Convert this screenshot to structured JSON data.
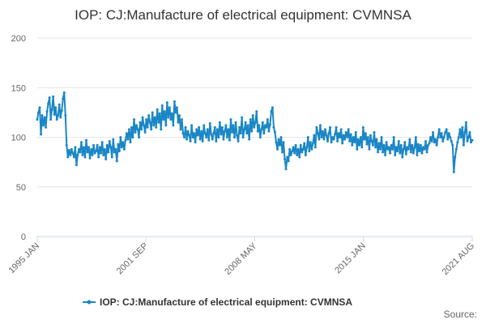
{
  "colors": {
    "series": "#1a86c6",
    "grid": "#e6e6e6",
    "axis": "#ccd6eb"
  },
  "chart_data": {
    "type": "line",
    "title": "IOP: CJ:Manufacture of electrical equipment: CVMNSA",
    "xlabel": "",
    "ylabel": "",
    "ylim": [
      0,
      200
    ],
    "yticks": [
      0,
      50,
      100,
      150,
      200
    ],
    "xticks": [
      "1995 JAN",
      "2001 SEP",
      "2008 MAY",
      "2015 JAN",
      "2021 AUG"
    ],
    "grid": true,
    "legend": "bottom-center",
    "source": "Source:",
    "series": [
      {
        "name": "IOP: CJ:Manufacture of electrical equipment: CVMNSA",
        "start": "1995 JAN",
        "frequency": "monthly",
        "values": [
          118,
          125,
          130,
          103,
          122,
          112,
          120,
          110,
          126,
          134,
          140,
          118,
          128,
          141,
          123,
          130,
          118,
          122,
          133,
          120,
          127,
          139,
          145,
          122,
          92,
          80,
          87,
          82,
          88,
          84,
          80,
          90,
          72,
          82,
          88,
          85,
          95,
          82,
          90,
          80,
          97,
          85,
          90,
          79,
          88,
          82,
          92,
          84,
          86,
          92,
          80,
          90,
          84,
          95,
          82,
          88,
          78,
          92,
          85,
          96,
          90,
          80,
          98,
          85,
          88,
          76,
          93,
          86,
          100,
          90,
          95,
          88,
          97,
          104,
          98,
          108,
          95,
          110,
          100,
          118,
          105,
          112,
          108,
          100,
          115,
          108,
          120,
          112,
          105,
          118,
          110,
          122,
          115,
          108,
          125,
          112,
          120,
          110,
          128,
          115,
          124,
          108,
          132,
          118,
          126,
          112,
          135,
          120,
          130,
          118,
          124,
          112,
          136,
          125,
          130,
          115,
          122,
          108,
          118,
          104,
          100,
          110,
          98,
          106,
          102,
          96,
          112,
          100,
          104,
          95,
          108,
          102,
          110,
          98,
          106,
          96,
          112,
          104,
          100,
          108,
          97,
          114,
          103,
          98,
          104,
          110,
          96,
          108,
          100,
          115,
          103,
          110,
          98,
          106,
          112,
          100,
          108,
          97,
          118,
          105,
          112,
          100,
          115,
          102,
          96,
          110,
          104,
          120,
          100,
          108,
          115,
          104,
          112,
          98,
          118,
          106,
          122,
          110,
          115,
          126,
          106,
          112,
          100,
          108,
          115,
          104,
          112,
          110,
          118,
          106,
          113,
          126,
          130,
          110,
          105,
          95,
          88,
          98,
          92,
          100,
          85,
          95,
          78,
          68,
          80,
          76,
          88,
          82,
          86,
          90,
          84,
          92,
          82,
          88,
          80,
          92,
          85,
          88,
          94,
          82,
          90,
          100,
          86,
          95,
          88,
          94,
          102,
          90,
          110,
          104,
          98,
          112,
          100,
          106,
          98,
          108,
          102,
          96,
          104,
          110,
          95,
          100,
          98,
          103,
          110,
          96,
          104,
          100,
          108,
          94,
          102,
          98,
          105,
          100,
          108,
          96,
          103,
          92,
          100,
          95,
          105,
          88,
          98,
          92,
          100,
          90,
          110,
          98,
          104,
          93,
          100,
          88,
          102,
          96,
          92,
          105,
          90,
          98,
          85,
          94,
          88,
          100,
          85,
          92,
          82,
          95,
          88,
          90,
          84,
          92,
          88,
          100,
          82,
          90,
          86,
          96,
          84,
          92,
          80,
          88,
          95,
          83,
          90,
          88,
          98,
          85,
          92,
          84,
          90,
          100,
          82,
          93,
          86,
          92,
          84,
          90,
          88,
          96,
          85,
          92,
          94,
          100,
          96,
          105,
          95,
          98,
          92,
          100,
          108,
          100,
          104,
          96,
          100,
          105,
          108,
          98,
          104,
          100,
          96,
          92,
          65,
          80,
          88,
          95,
          100,
          108,
          100,
          110,
          92,
          105,
          115,
          96,
          100,
          105,
          95,
          97
        ]
      }
    ]
  }
}
